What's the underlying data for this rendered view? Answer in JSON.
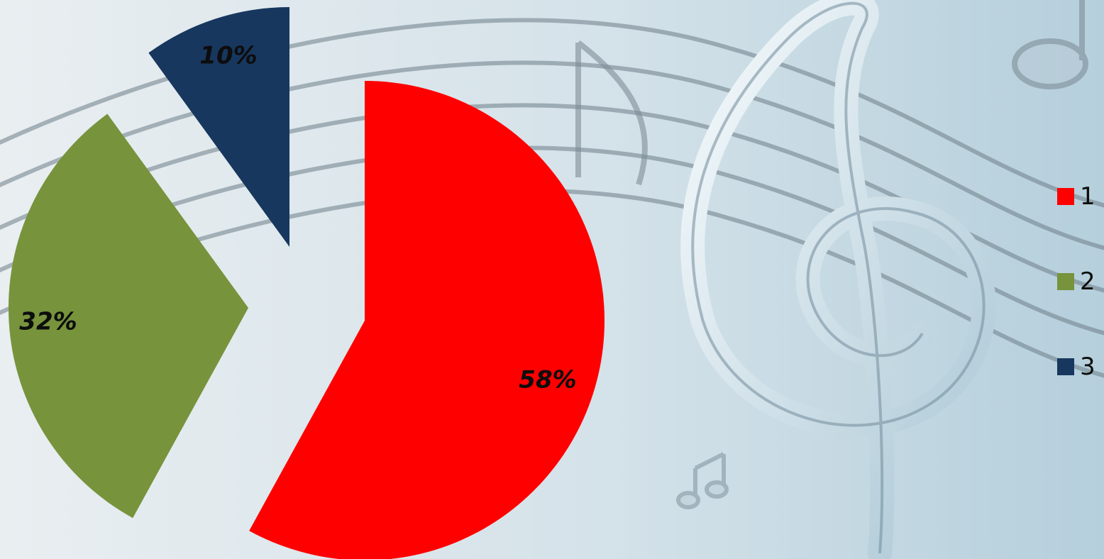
{
  "chart_data": {
    "type": "pie",
    "exploded": true,
    "categories": [
      "1",
      "2",
      "3"
    ],
    "values": [
      58,
      32,
      10
    ],
    "data_labels": [
      "58%",
      "32%",
      "10%"
    ],
    "colors": [
      "#FF0000",
      "#77933C",
      "#17375E"
    ],
    "legend_placement": "right",
    "title": ""
  },
  "legend": {
    "items": [
      {
        "label": "1",
        "color": "#FF0000"
      },
      {
        "label": "2",
        "color": "#77933C"
      },
      {
        "label": "3",
        "color": "#17375E"
      }
    ]
  },
  "background": {
    "theme": "music-staff",
    "icons": [
      "treble-clef-icon",
      "musical-note-icon",
      "beamed-notes-icon"
    ],
    "base_color": "#C9DCE6"
  }
}
